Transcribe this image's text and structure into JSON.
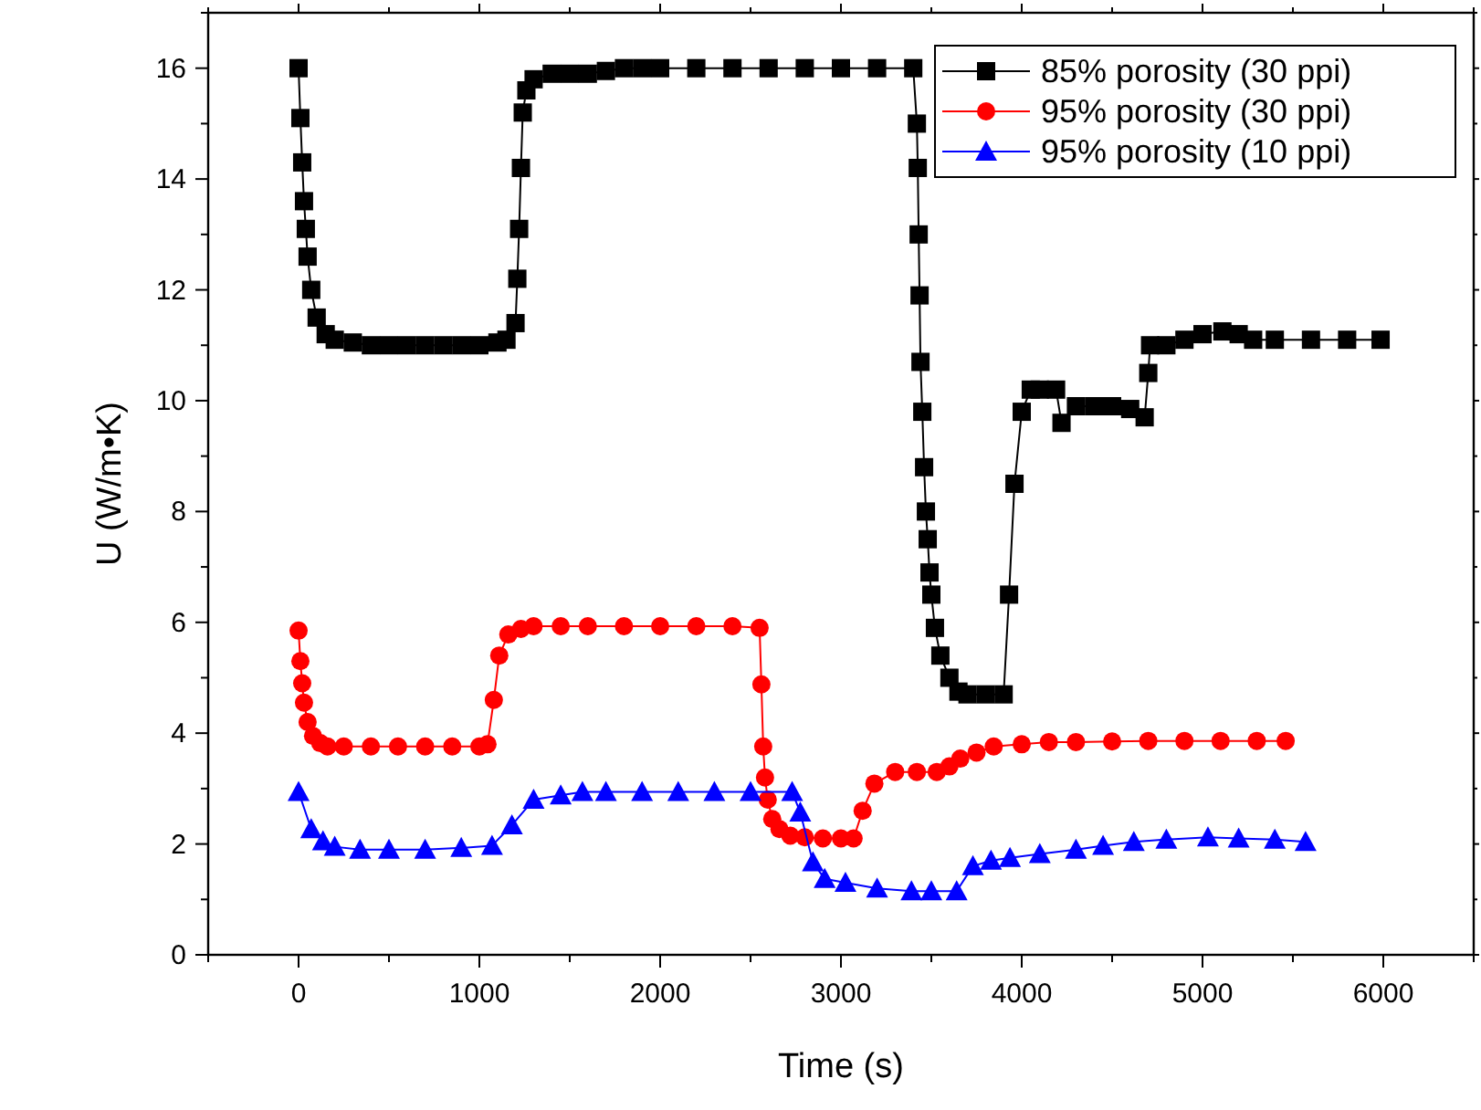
{
  "chart_data": {
    "type": "line",
    "xlabel": "Time (s)",
    "ylabel": "U (W/m•K)",
    "xlim": [
      -500,
      6500
    ],
    "ylim": [
      0,
      17
    ],
    "xticks": [
      {
        "value": -500,
        "label": null
      },
      0,
      {
        "value": 500,
        "label": null
      },
      1000,
      {
        "value": 1500,
        "label": null
      },
      2000,
      {
        "value": 2500,
        "label": null
      },
      3000,
      {
        "value": 3500,
        "label": null
      },
      4000,
      {
        "value": 4500,
        "label": null
      },
      5000,
      {
        "value": 5500,
        "label": null
      },
      6000,
      {
        "value": 6500,
        "label": null
      }
    ],
    "yticks": [
      0,
      {
        "value": 1,
        "label": null
      },
      2,
      {
        "value": 3,
        "label": null
      },
      4,
      {
        "value": 5,
        "label": null
      },
      6,
      {
        "value": 7,
        "label": null
      },
      8,
      {
        "value": 9,
        "label": null
      },
      10,
      {
        "value": 11,
        "label": null
      },
      12,
      {
        "value": 13,
        "label": null
      },
      14,
      {
        "value": 15,
        "label": null
      },
      16,
      {
        "value": 17,
        "label": null
      }
    ],
    "grid": false,
    "legend": "top right",
    "line_style": "solid",
    "series": [
      {
        "name": "85% porosity (30 ppi)",
        "color": "#000000",
        "marker": "square",
        "x": [
          0,
          10,
          20,
          30,
          40,
          50,
          70,
          100,
          150,
          200,
          300,
          400,
          500,
          600,
          700,
          800,
          900,
          1000,
          1100,
          1150,
          1200,
          1210,
          1220,
          1230,
          1240,
          1260,
          1300,
          1400,
          1500,
          1600,
          1700,
          1800,
          1900,
          2000,
          2200,
          2400,
          2600,
          2800,
          3000,
          3200,
          3400,
          3420,
          3425,
          3430,
          3435,
          3440,
          3450,
          3460,
          3470,
          3480,
          3490,
          3500,
          3520,
          3550,
          3600,
          3650,
          3700,
          3800,
          3900,
          3930,
          3960,
          4000,
          4050,
          4100,
          4190,
          4220,
          4300,
          4400,
          4500,
          4600,
          4680,
          4700,
          4710,
          4800,
          4900,
          5000,
          5110,
          5200,
          5280,
          5400,
          5600,
          5800,
          5985
        ],
        "values": [
          16,
          15.1,
          14.3,
          13.6,
          13.1,
          12.6,
          12.0,
          11.5,
          11.2,
          11.1,
          11.05,
          11.0,
          11.0,
          11.0,
          11.0,
          11.0,
          11.0,
          11.0,
          11.05,
          11.1,
          11.4,
          12.2,
          13.1,
          14.2,
          15.2,
          15.6,
          15.8,
          15.9,
          15.9,
          15.9,
          15.95,
          16,
          16,
          16,
          16,
          16,
          16,
          16,
          16,
          16,
          16,
          15.0,
          14.2,
          13.0,
          11.9,
          10.7,
          9.8,
          8.8,
          8.0,
          7.5,
          6.9,
          6.5,
          5.9,
          5.4,
          5.0,
          4.75,
          4.7,
          4.7,
          4.7,
          6.5,
          8.5,
          9.8,
          10.2,
          10.2,
          10.2,
          9.6,
          9.9,
          9.9,
          9.9,
          9.85,
          9.7,
          10.5,
          11.0,
          11.0,
          11.1,
          11.2,
          11.25,
          11.2,
          11.1,
          11.1,
          11.1,
          11.1,
          11.1
        ]
      },
      {
        "name": "95% porosity (30 ppi)",
        "color": "#ff0000",
        "marker": "circle",
        "x": [
          0,
          10,
          20,
          30,
          50,
          80,
          120,
          160,
          250,
          400,
          550,
          700,
          850,
          1000,
          1045,
          1080,
          1110,
          1160,
          1230,
          1300,
          1450,
          1600,
          1800,
          2000,
          2200,
          2400,
          2550,
          2560,
          2570,
          2580,
          2595,
          2620,
          2660,
          2720,
          2800,
          2900,
          3000,
          3070,
          3120,
          3185,
          3300,
          3420,
          3530,
          3600,
          3660,
          3750,
          3845,
          4000,
          4150,
          4300,
          4500,
          4700,
          4900,
          5100,
          5300,
          5460
        ],
        "values": [
          5.85,
          5.3,
          4.9,
          4.55,
          4.2,
          3.95,
          3.82,
          3.76,
          3.76,
          3.76,
          3.76,
          3.76,
          3.76,
          3.76,
          3.8,
          4.6,
          5.4,
          5.78,
          5.88,
          5.93,
          5.93,
          5.93,
          5.93,
          5.93,
          5.93,
          5.93,
          5.9,
          4.88,
          3.76,
          3.2,
          2.8,
          2.45,
          2.27,
          2.15,
          2.12,
          2.1,
          2.1,
          2.1,
          2.6,
          3.09,
          3.3,
          3.3,
          3.3,
          3.4,
          3.54,
          3.65,
          3.76,
          3.8,
          3.84,
          3.84,
          3.85,
          3.86,
          3.86,
          3.86,
          3.86,
          3.86
        ]
      },
      {
        "name": "95% porosity (10 ppi)",
        "color": "#0000ff",
        "marker": "triangle",
        "x": [
          0,
          70,
          135,
          200,
          340,
          500,
          700,
          900,
          1070,
          1180,
          1300,
          1450,
          1570,
          1700,
          1900,
          2100,
          2300,
          2500,
          2730,
          2775,
          2845,
          2910,
          3025,
          3200,
          3390,
          3500,
          3640,
          3730,
          3830,
          3935,
          4100,
          4300,
          4450,
          4620,
          4800,
          5030,
          5200,
          5400,
          5570
        ],
        "values": [
          2.94,
          2.27,
          2.05,
          1.95,
          1.9,
          1.9,
          1.9,
          1.93,
          1.97,
          2.34,
          2.8,
          2.88,
          2.94,
          2.94,
          2.94,
          2.94,
          2.94,
          2.94,
          2.94,
          2.57,
          1.67,
          1.37,
          1.3,
          1.2,
          1.15,
          1.15,
          1.15,
          1.6,
          1.7,
          1.75,
          1.82,
          1.9,
          1.97,
          2.04,
          2.08,
          2.12,
          2.1,
          2.08,
          2.04
        ]
      }
    ]
  }
}
